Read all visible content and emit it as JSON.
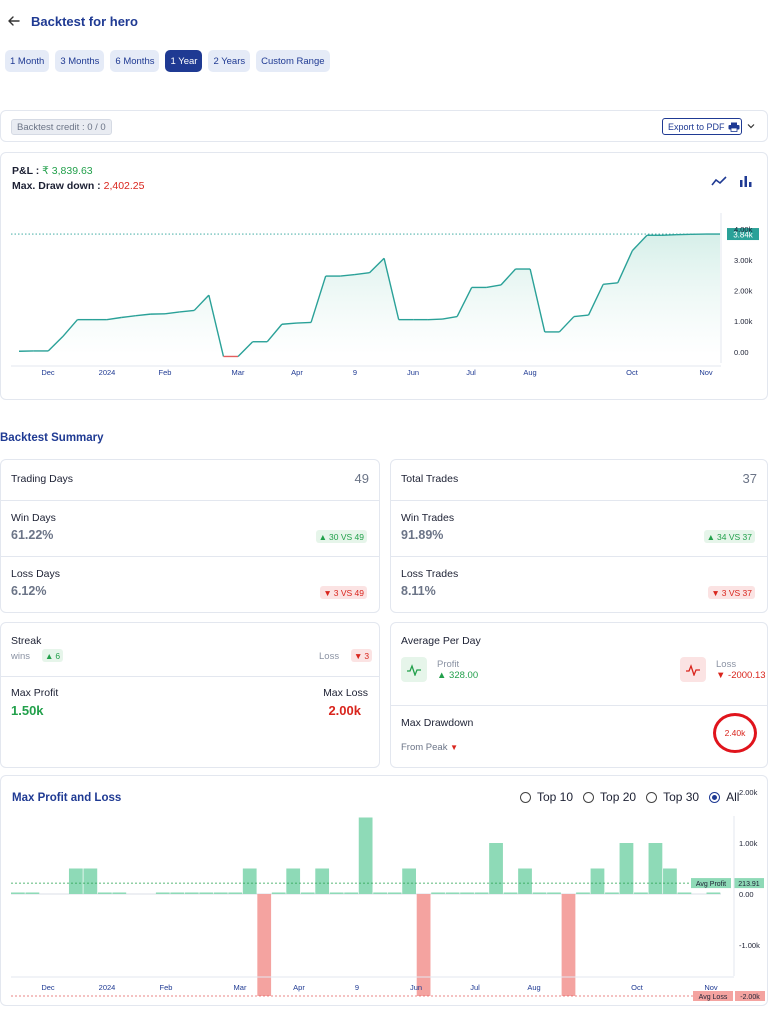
{
  "header": {
    "title": "Backtest for hero"
  },
  "ranges": [
    {
      "label": "1 Month",
      "active": false
    },
    {
      "label": "3 Months",
      "active": false
    },
    {
      "label": "6 Months",
      "active": false
    },
    {
      "label": "1 Year",
      "active": true
    },
    {
      "label": "2 Years",
      "active": false
    },
    {
      "label": "Custom Range",
      "active": false
    }
  ],
  "credit": {
    "label": "Backtest credit : 0 / 0",
    "export_label": "Export to PDF"
  },
  "pnl": {
    "pnl_label": "P&L :",
    "pnl_value": "₹ 3,839.63",
    "dd_label": "Max. Draw down :",
    "dd_value": "2,402.25"
  },
  "chart_data": [
    {
      "type": "area",
      "title": "",
      "x_ticks": [
        "Dec",
        "2024",
        "Feb",
        "Mar",
        "Apr",
        "9",
        "Jun",
        "Jul",
        "Aug",
        "Oct",
        "Nov"
      ],
      "y_ticks": [
        "0.00",
        "1.00k",
        "2.00k",
        "3.00k",
        "4.00k"
      ],
      "last_value_label": "3.84k",
      "ylim": [
        -200,
        4200
      ],
      "series": [
        {
          "values": [
            20,
            30,
            30,
            500,
            1050,
            1050,
            1050,
            1120,
            1180,
            1230,
            1240,
            1300,
            1350,
            1850,
            -150,
            -150,
            330,
            330,
            900,
            940,
            960,
            2470,
            2470,
            2520,
            2580,
            3050,
            1050,
            1050,
            1050,
            1070,
            1150,
            2100,
            2100,
            2180,
            2700,
            2700,
            650,
            650,
            1150,
            1200,
            2200,
            2250,
            3300,
            3800,
            3800,
            3820,
            3830,
            3840,
            3840
          ]
        }
      ],
      "colors": {
        "line": "#2aa198",
        "negative": "#e35d5d",
        "fill": "#d6efe9"
      }
    },
    {
      "type": "bar",
      "title": "Max Profit and Loss",
      "x_ticks": [
        "Dec",
        "2024",
        "Feb",
        "Mar",
        "Apr",
        "9",
        "Jun",
        "Jul",
        "Aug",
        "Oct",
        "Nov"
      ],
      "y_ticks": [
        "2.00k",
        "1.00k",
        "0.00",
        "-1.00k",
        "-2.00k"
      ],
      "ylim": [
        -2300,
        2300
      ],
      "avg_profit_label": "Avg Profit",
      "avg_profit_value": "213.91",
      "avg_loss_label": "Avg Loss",
      "avg_loss_value": "-2.00k",
      "values": [
        30,
        30,
        0,
        0,
        500,
        500,
        30,
        30,
        0,
        0,
        30,
        30,
        30,
        30,
        30,
        30,
        500,
        -2000,
        30,
        500,
        30,
        500,
        30,
        30,
        1500,
        30,
        30,
        500,
        -2000,
        30,
        30,
        30,
        30,
        1000,
        30,
        500,
        30,
        30,
        -2000,
        30,
        500,
        30,
        1000,
        30,
        1000,
        500,
        30,
        0,
        30
      ],
      "colors": {
        "profit": "#8edab7",
        "loss": "#f4a3a0"
      }
    }
  ],
  "summary": {
    "title": "Backtest Summary",
    "trading_days": {
      "label": "Trading Days",
      "value": "49"
    },
    "win_days": {
      "label": "Win Days",
      "value": "61.22%",
      "badge": "30 VS 49"
    },
    "loss_days": {
      "label": "Loss Days",
      "value": "6.12%",
      "badge": "3 VS 49"
    },
    "total_trades": {
      "label": "Total Trades",
      "value": "37"
    },
    "win_trades": {
      "label": "Win Trades",
      "value": "91.89%",
      "badge": "34 VS 37"
    },
    "loss_trades": {
      "label": "Loss Trades",
      "value": "8.11%",
      "badge": "3 VS 37"
    },
    "streak": {
      "label": "Streak",
      "wins_label": "wins",
      "wins_value": "6",
      "loss_label": "Loss",
      "loss_value": "3"
    },
    "max_profit": {
      "label": "Max Profit",
      "value": "1.50k"
    },
    "max_loss": {
      "label": "Max Loss",
      "value": "2.00k"
    },
    "avg_per_day": {
      "label": "Average Per Day",
      "profit_label": "Profit",
      "profit_value": "328.00",
      "loss_label": "Loss",
      "loss_value": "-2000.13"
    },
    "max_drawdown": {
      "label": "Max Drawdown",
      "from_peak": "From Peak",
      "value": "2.40k"
    }
  },
  "mpl": {
    "title": "Max Profit and Loss",
    "options": [
      {
        "label": "Top 10",
        "selected": false
      },
      {
        "label": "Top 20",
        "selected": false
      },
      {
        "label": "Top 30",
        "selected": false
      },
      {
        "label": "All",
        "selected": true
      }
    ]
  }
}
